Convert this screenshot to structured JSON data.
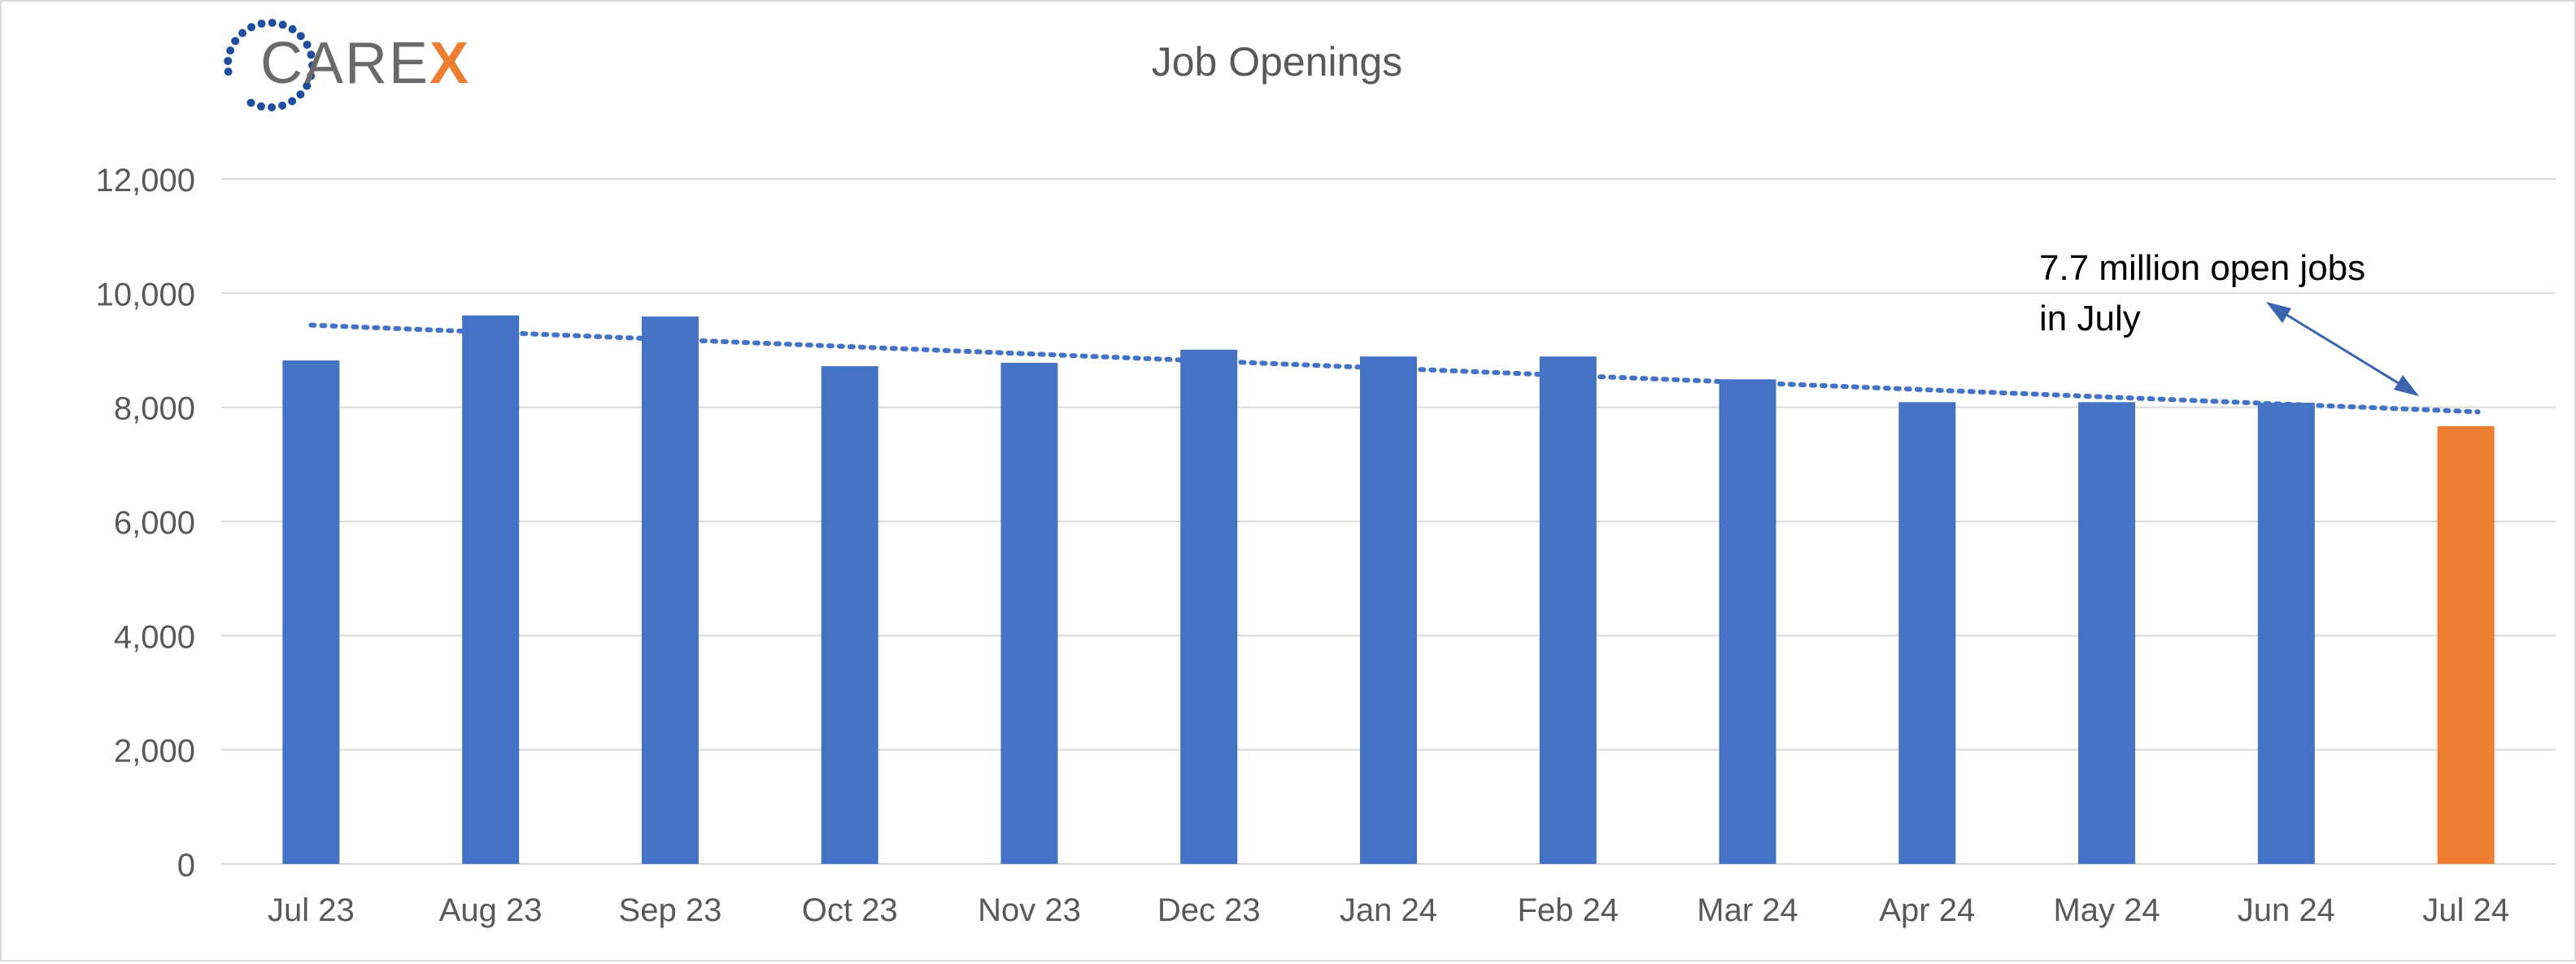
{
  "logo": {
    "text_main": "CARE",
    "text_accent": "X",
    "colors": {
      "main": "#6a6a6a",
      "accent": "#ed7d31",
      "dots": "#1f4e9c"
    }
  },
  "chart_data": {
    "type": "bar",
    "title": "Job Openings",
    "xlabel": "",
    "ylabel": "",
    "categories": [
      "Jul 23",
      "Aug 23",
      "Sep 23",
      "Oct 23",
      "Nov 23",
      "Dec 23",
      "Jan 24",
      "Feb 24",
      "Mar 24",
      "Apr 24",
      "May 24",
      "Jun 24",
      "Jul 24"
    ],
    "values": [
      8820,
      9610,
      9590,
      8720,
      8780,
      9010,
      8890,
      8890,
      8490,
      8090,
      8090,
      8080,
      7670
    ],
    "ylim": [
      0,
      12000
    ],
    "yticks": [
      0,
      2000,
      4000,
      6000,
      8000,
      10000,
      12000
    ],
    "ytick_labels": [
      "0",
      "2,000",
      "4,000",
      "6,000",
      "8,000",
      "10,000",
      "12,000"
    ],
    "grid": true,
    "colors": {
      "bar": "#4472c4",
      "highlight": "#ed7d31",
      "trendline": "#4472c4",
      "grid": "#d9d9d9",
      "text": "#595959"
    },
    "highlight_index": 12,
    "trendline": {
      "style": "dotted",
      "start_value": 9440,
      "end_value": 7920
    },
    "annotation": {
      "lines": [
        "7.7 million open jobs",
        "in July"
      ]
    }
  }
}
